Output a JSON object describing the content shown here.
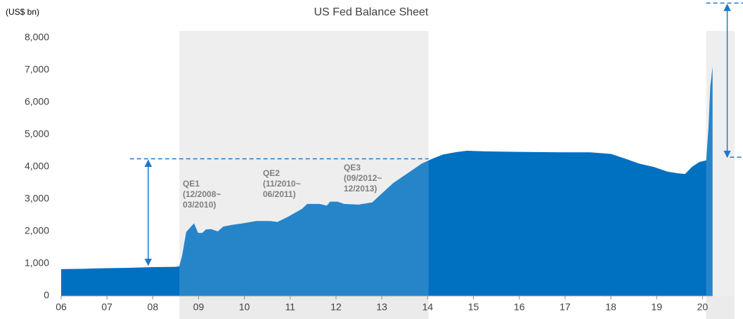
{
  "chart_data": {
    "type": "area",
    "title": "US Fed Balance Sheet",
    "y_axis_label": "(US$ bn)",
    "color": "#0070c0",
    "x": [
      2006.0,
      2006.51,
      2007.0,
      2007.5,
      2007.99,
      2008.5,
      2008.58,
      2008.64,
      2008.73,
      2008.9,
      2008.99,
      2009.08,
      2009.16,
      2009.27,
      2009.42,
      2009.54,
      2009.73,
      2009.97,
      2010.26,
      2010.57,
      2010.72,
      2010.95,
      2011.26,
      2011.37,
      2011.64,
      2011.8,
      2011.87,
      2012.03,
      2012.18,
      2012.49,
      2012.79,
      2013.02,
      2013.25,
      2013.56,
      2013.87,
      2014.1,
      2014.33,
      2014.63,
      2014.86,
      2015.25,
      2015.71,
      2016.32,
      2016.94,
      2017.55,
      2018.01,
      2018.32,
      2018.62,
      2018.93,
      2019.24,
      2019.47,
      2019.62,
      2019.77,
      2019.93,
      2020.08,
      2020.13,
      2020.17,
      2020.22
    ],
    "values": [
      830,
      840,
      860,
      870,
      890,
      900,
      920,
      1250,
      1980,
      2250,
      1950,
      1950,
      2060,
      2070,
      2000,
      2150,
      2200,
      2250,
      2320,
      2320,
      2290,
      2450,
      2700,
      2850,
      2850,
      2800,
      2920,
      2920,
      2850,
      2830,
      2900,
      3200,
      3500,
      3800,
      4100,
      4250,
      4380,
      4460,
      4500,
      4480,
      4470,
      4460,
      4450,
      4450,
      4400,
      4250,
      4100,
      4000,
      3850,
      3800,
      3780,
      4000,
      4150,
      4200,
      5200,
      6500,
      7100
    ],
    "xlim": [
      2006,
      2020.7
    ],
    "xticks": [
      {
        "value": 2006,
        "label": "06"
      },
      {
        "value": 2007,
        "label": "07"
      },
      {
        "value": 2008,
        "label": "08"
      },
      {
        "value": 2009,
        "label": "09"
      },
      {
        "value": 2010,
        "label": "10"
      },
      {
        "value": 2011,
        "label": "11"
      },
      {
        "value": 2012,
        "label": "12"
      },
      {
        "value": 2013,
        "label": "13"
      },
      {
        "value": 2014,
        "label": "14"
      },
      {
        "value": 2015,
        "label": "15"
      },
      {
        "value": 2016,
        "label": "16"
      },
      {
        "value": 2017,
        "label": "17"
      },
      {
        "value": 2018,
        "label": "18"
      },
      {
        "value": 2019,
        "label": "19"
      },
      {
        "value": 2020,
        "label": "20"
      }
    ],
    "ylim": [
      0,
      8000
    ],
    "yticks": [
      0,
      {
        "value": 1000,
        "label": "1,000"
      },
      {
        "value": 2000,
        "label": "2,000"
      },
      {
        "value": 3000,
        "label": "3,000"
      },
      {
        "value": 4000,
        "label": "4,000"
      },
      {
        "value": 5000,
        "label": "5,000"
      },
      {
        "value": 6000,
        "label": "6,000"
      },
      {
        "value": 7000,
        "label": "7,000"
      },
      {
        "value": 8000,
        "label": "8,000"
      }
    ],
    "shaded_ranges": [
      [
        2008.58,
        2014.02
      ],
      [
        2020.08,
        2020.7
      ]
    ],
    "reference_lines": [
      {
        "y": 4250,
        "x": [
          2007.5,
          2014.02
        ]
      },
      {
        "y": 4300,
        "x": [
          2020.6,
          2020.9
        ]
      },
      {
        "y": 9080,
        "x": [
          2020.08,
          2020.9
        ]
      }
    ],
    "arrows": [
      {
        "x": 2007.9,
        "y": [
          950,
          4250
        ]
      },
      {
        "x": 2020.54,
        "y": [
          4300,
          9080
        ]
      }
    ],
    "annotations": [
      {
        "lines": [
          "QE1",
          "(12/2008~",
          "03/2010)"
        ]
      },
      {
        "lines": [
          "QE2",
          "(11/2010~",
          "06/2011)"
        ]
      },
      {
        "lines": [
          "QE3",
          "(09/2012~",
          "12/2013)"
        ]
      }
    ]
  }
}
